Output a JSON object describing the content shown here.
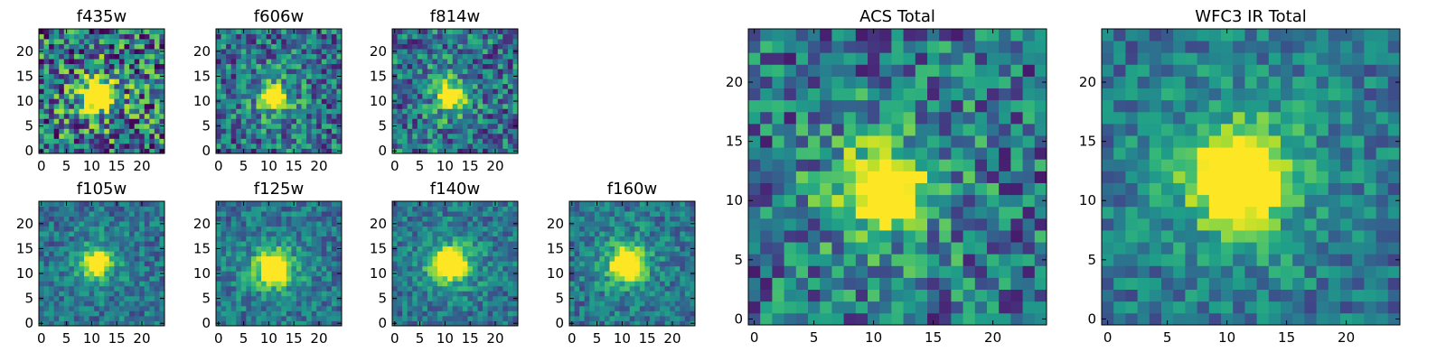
{
  "chart_data": [
    {
      "type": "heatmap",
      "title": "f435w",
      "xticks": [
        0,
        5,
        10,
        15,
        20
      ],
      "yticks": [
        0,
        5,
        10,
        15,
        20
      ],
      "xlim": [
        0,
        24
      ],
      "ylim": [
        0,
        24
      ],
      "grid_size": [
        25,
        25
      ],
      "colormap": "viridis",
      "source_center": [
        11,
        11
      ],
      "peak_size_px": 4,
      "noise_level": "high"
    },
    {
      "type": "heatmap",
      "title": "f606w",
      "xticks": [
        0,
        5,
        10,
        15,
        20
      ],
      "yticks": [
        0,
        5,
        10,
        15,
        20
      ],
      "xlim": [
        0,
        24
      ],
      "ylim": [
        0,
        24
      ],
      "grid_size": [
        25,
        25
      ],
      "colormap": "viridis",
      "source_center": [
        11,
        11
      ],
      "peak_size_px": 3,
      "noise_level": "medium"
    },
    {
      "type": "heatmap",
      "title": "f814w",
      "xticks": [
        0,
        5,
        10,
        15,
        20
      ],
      "yticks": [
        0,
        5,
        10,
        15,
        20
      ],
      "xlim": [
        0,
        24
      ],
      "ylim": [
        0,
        24
      ],
      "grid_size": [
        25,
        25
      ],
      "colormap": "viridis",
      "source_center": [
        11,
        11
      ],
      "peak_size_px": 3,
      "noise_level": "medium"
    },
    {
      "type": "heatmap",
      "title": "f105w",
      "xticks": [
        0,
        5,
        10,
        15,
        20
      ],
      "yticks": [
        0,
        5,
        10,
        15,
        20
      ],
      "xlim": [
        0,
        24
      ],
      "ylim": [
        0,
        24
      ],
      "grid_size": [
        25,
        25
      ],
      "colormap": "viridis",
      "source_center": [
        11,
        12
      ],
      "peak_size_px": 3,
      "noise_level": "low"
    },
    {
      "type": "heatmap",
      "title": "f125w",
      "xticks": [
        0,
        5,
        10,
        15,
        20
      ],
      "yticks": [
        0,
        5,
        10,
        15,
        20
      ],
      "xlim": [
        0,
        24
      ],
      "ylim": [
        0,
        24
      ],
      "grid_size": [
        25,
        25
      ],
      "colormap": "viridis",
      "source_center": [
        11,
        11
      ],
      "peak_size_px": 4,
      "noise_level": "low"
    },
    {
      "type": "heatmap",
      "title": "f140w",
      "xticks": [
        0,
        5,
        10,
        15,
        20
      ],
      "yticks": [
        0,
        5,
        10,
        15,
        20
      ],
      "xlim": [
        0,
        24
      ],
      "ylim": [
        0,
        24
      ],
      "grid_size": [
        25,
        25
      ],
      "colormap": "viridis",
      "source_center": [
        11,
        12
      ],
      "peak_size_px": 4,
      "noise_level": "low"
    },
    {
      "type": "heatmap",
      "title": "f160w",
      "xticks": [
        0,
        5,
        10,
        15,
        20
      ],
      "yticks": [
        0,
        5,
        10,
        15,
        20
      ],
      "xlim": [
        0,
        24
      ],
      "ylim": [
        0,
        24
      ],
      "grid_size": [
        25,
        25
      ],
      "colormap": "viridis",
      "source_center": [
        11,
        12
      ],
      "peak_size_px": 4,
      "noise_level": "low"
    },
    {
      "type": "heatmap",
      "title": "ACS Total",
      "xticks": [
        0,
        5,
        10,
        15,
        20
      ],
      "yticks": [
        0,
        5,
        10,
        15,
        20
      ],
      "xlim": [
        0,
        24
      ],
      "ylim": [
        0,
        24
      ],
      "grid_size": [
        25,
        25
      ],
      "colormap": "viridis",
      "source_center": [
        11,
        11
      ],
      "peak_size_px": 4,
      "noise_level": "medium"
    },
    {
      "type": "heatmap",
      "title": "WFC3 IR Total",
      "xticks": [
        0,
        5,
        10,
        15,
        20
      ],
      "yticks": [
        0,
        5,
        10,
        15,
        20
      ],
      "xlim": [
        0,
        24
      ],
      "ylim": [
        0,
        24
      ],
      "grid_size": [
        25,
        25
      ],
      "colormap": "viridis",
      "source_center": [
        11,
        12
      ],
      "peak_size_px": 5,
      "noise_level": "low"
    }
  ]
}
